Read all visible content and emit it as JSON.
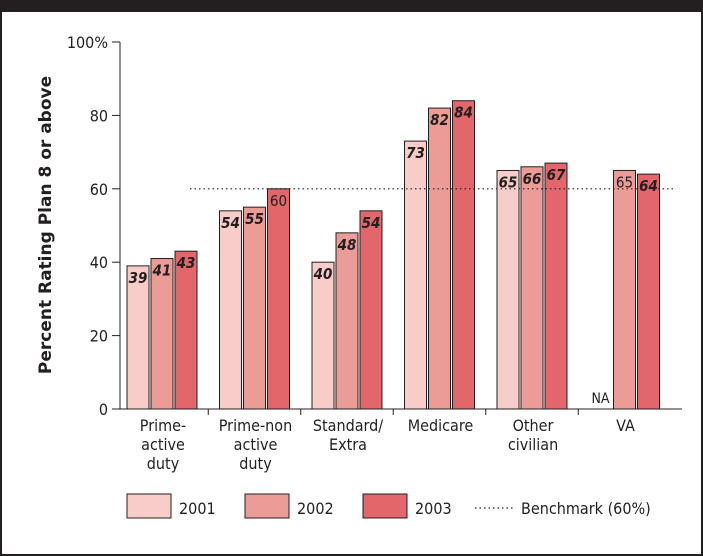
{
  "chart_data": {
    "type": "bar",
    "ylabel": "Percent Rating Plan 8 or above",
    "ylim": [
      0,
      100
    ],
    "yticks": [
      0,
      20,
      40,
      60,
      80,
      100
    ],
    "ytick_labels": [
      "0",
      "20",
      "40",
      "60",
      "80",
      "100%"
    ],
    "categories": [
      [
        "Prime-",
        "active",
        "duty"
      ],
      [
        "Prime-non",
        "active",
        "duty"
      ],
      [
        "Standard/",
        "Extra"
      ],
      [
        "Medicare"
      ],
      [
        "Other",
        "civilian"
      ],
      [
        "VA"
      ]
    ],
    "series": [
      {
        "name": "2001",
        "color": "#f8cdc9",
        "values": [
          39,
          54,
          40,
          73,
          65,
          null
        ],
        "labels": [
          "39",
          "54",
          "40",
          "73",
          "65",
          "NA"
        ],
        "label_style": [
          "bold-italic",
          "bold-italic",
          "bold-italic",
          "bold-italic",
          "bold-italic",
          "plain"
        ]
      },
      {
        "name": "2002",
        "color": "#ec9c96",
        "values": [
          41,
          55,
          48,
          82,
          66,
          65
        ],
        "labels": [
          "41",
          "55",
          "48",
          "82",
          "66",
          "65"
        ],
        "label_style": [
          "bold-italic",
          "bold-italic",
          "bold-italic",
          "bold-italic",
          "bold-italic",
          "plain"
        ]
      },
      {
        "name": "2003",
        "color": "#e2666a",
        "values": [
          43,
          60,
          54,
          84,
          67,
          64
        ],
        "labels": [
          "43",
          "60",
          "54",
          "84",
          "67",
          "64"
        ],
        "label_style": [
          "bold-italic",
          "plain",
          "bold-italic",
          "bold-italic",
          "bold-italic",
          "bold-italic"
        ]
      }
    ],
    "benchmark": {
      "value": 60,
      "label": "Benchmark (60%)"
    },
    "legend_position": "bottom",
    "grid": false
  }
}
